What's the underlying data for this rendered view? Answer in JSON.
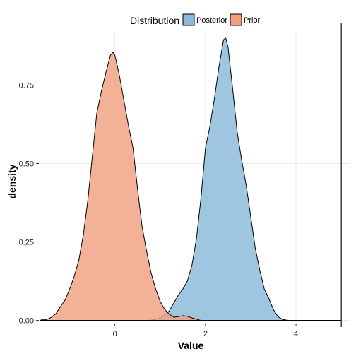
{
  "chart_data": {
    "type": "area",
    "xlabel": "Value",
    "ylabel": "density",
    "xlim": [
      -1.68,
      5.2
    ],
    "ylim": [
      -0.01,
      0.92
    ],
    "vline": 5.0,
    "grid": true,
    "legend": {
      "title": "Distribution",
      "position": "top"
    },
    "x_ticks": [
      {
        "value": 0,
        "label": "0"
      },
      {
        "value": 2,
        "label": "2"
      },
      {
        "value": 4,
        "label": "4"
      }
    ],
    "y_ticks": [
      {
        "value": 0,
        "label": "0.00"
      },
      {
        "value": 0.25,
        "label": "0.25"
      },
      {
        "value": 0.5,
        "label": "0.50"
      },
      {
        "value": 0.75,
        "label": "0.75"
      }
    ],
    "series": [
      {
        "name": "Posterior",
        "color": "#8ab9da",
        "points": [
          [
            0.73,
            0.0
          ],
          [
            0.9,
            0.003
          ],
          [
            1.0,
            0.008
          ],
          [
            1.1,
            0.018
          ],
          [
            1.2,
            0.03
          ],
          [
            1.3,
            0.055
          ],
          [
            1.4,
            0.08
          ],
          [
            1.5,
            0.1
          ],
          [
            1.6,
            0.125
          ],
          [
            1.7,
            0.175
          ],
          [
            1.8,
            0.26
          ],
          [
            1.9,
            0.39
          ],
          [
            2.0,
            0.55
          ],
          [
            2.1,
            0.62
          ],
          [
            2.2,
            0.71
          ],
          [
            2.3,
            0.81
          ],
          [
            2.4,
            0.895
          ],
          [
            2.45,
            0.9
          ],
          [
            2.5,
            0.87
          ],
          [
            2.6,
            0.74
          ],
          [
            2.7,
            0.6
          ],
          [
            2.8,
            0.51
          ],
          [
            2.9,
            0.43
          ],
          [
            3.0,
            0.33
          ],
          [
            3.1,
            0.23
          ],
          [
            3.2,
            0.16
          ],
          [
            3.3,
            0.1
          ],
          [
            3.4,
            0.07
          ],
          [
            3.5,
            0.035
          ],
          [
            3.6,
            0.012
          ],
          [
            3.7,
            0.003
          ],
          [
            3.8,
            0.0005
          ],
          [
            3.85,
            0.0
          ]
        ]
      },
      {
        "name": "Prior",
        "color": "#f0a080",
        "points": [
          [
            -1.65,
            0.0
          ],
          [
            -1.6,
            0.003
          ],
          [
            -1.5,
            0.003
          ],
          [
            -1.4,
            0.01
          ],
          [
            -1.3,
            0.022
          ],
          [
            -1.2,
            0.045
          ],
          [
            -1.1,
            0.065
          ],
          [
            -1.0,
            0.1
          ],
          [
            -0.9,
            0.14
          ],
          [
            -0.8,
            0.19
          ],
          [
            -0.7,
            0.27
          ],
          [
            -0.6,
            0.38
          ],
          [
            -0.5,
            0.52
          ],
          [
            -0.4,
            0.66
          ],
          [
            -0.3,
            0.73
          ],
          [
            -0.2,
            0.79
          ],
          [
            -0.1,
            0.845
          ],
          [
            -0.04,
            0.855
          ],
          [
            0.0,
            0.845
          ],
          [
            0.1,
            0.78
          ],
          [
            0.2,
            0.7
          ],
          [
            0.3,
            0.62
          ],
          [
            0.4,
            0.55
          ],
          [
            0.5,
            0.42
          ],
          [
            0.6,
            0.3
          ],
          [
            0.7,
            0.22
          ],
          [
            0.8,
            0.15
          ],
          [
            0.9,
            0.1
          ],
          [
            1.0,
            0.06
          ],
          [
            1.1,
            0.035
          ],
          [
            1.2,
            0.02
          ],
          [
            1.3,
            0.01
          ],
          [
            1.4,
            0.012
          ],
          [
            1.5,
            0.015
          ],
          [
            1.6,
            0.013
          ],
          [
            1.7,
            0.008
          ],
          [
            1.8,
            0.004
          ],
          [
            1.9,
            0.0
          ]
        ]
      }
    ]
  }
}
